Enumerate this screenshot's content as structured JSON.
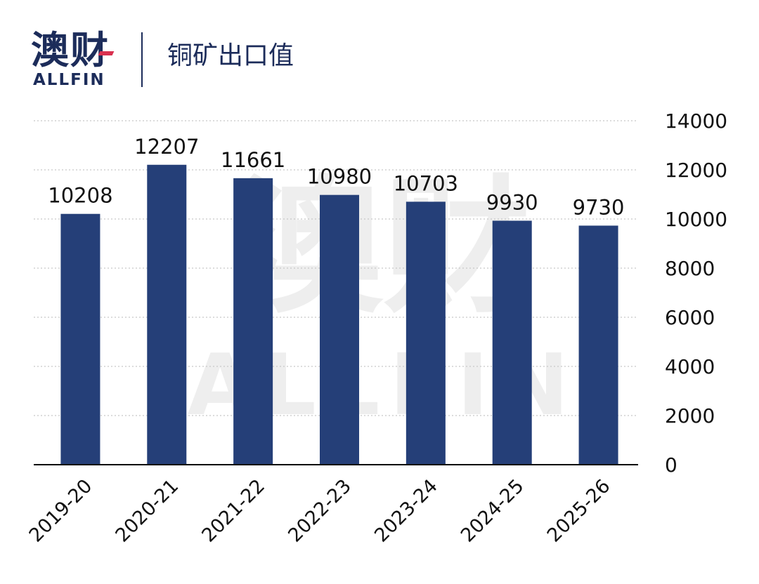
{
  "header": {
    "logo_main": "澳财",
    "logo_sub": "ALLFIN",
    "title": "铜矿出口值"
  },
  "watermark": {
    "main": "澳财",
    "sub": "ALLFIN"
  },
  "colors": {
    "bar": "#253f78",
    "text": "#111111",
    "grid": "#c8c8c8",
    "brand": "#1c2c5a"
  },
  "chart_data": {
    "type": "bar",
    "title": "铜矿出口值",
    "categories": [
      "2019-20",
      "2020-21",
      "2021-22",
      "2022-23",
      "2023-24",
      "2024-25",
      "2025-26"
    ],
    "values": [
      10208,
      12207,
      11661,
      10980,
      10703,
      9930,
      9730
    ],
    "value_labels": [
      "10208",
      "12207",
      "11661",
      "10980",
      "10703",
      "9930",
      "9730"
    ],
    "y_ticks": [
      "0",
      "2000",
      "4000",
      "6000",
      "8000",
      "10000",
      "12000",
      "14000"
    ],
    "ylim": [
      0,
      14000
    ],
    "y_axis_position": "right",
    "grid": true,
    "legend": "none",
    "xlabel": "",
    "ylabel": ""
  }
}
